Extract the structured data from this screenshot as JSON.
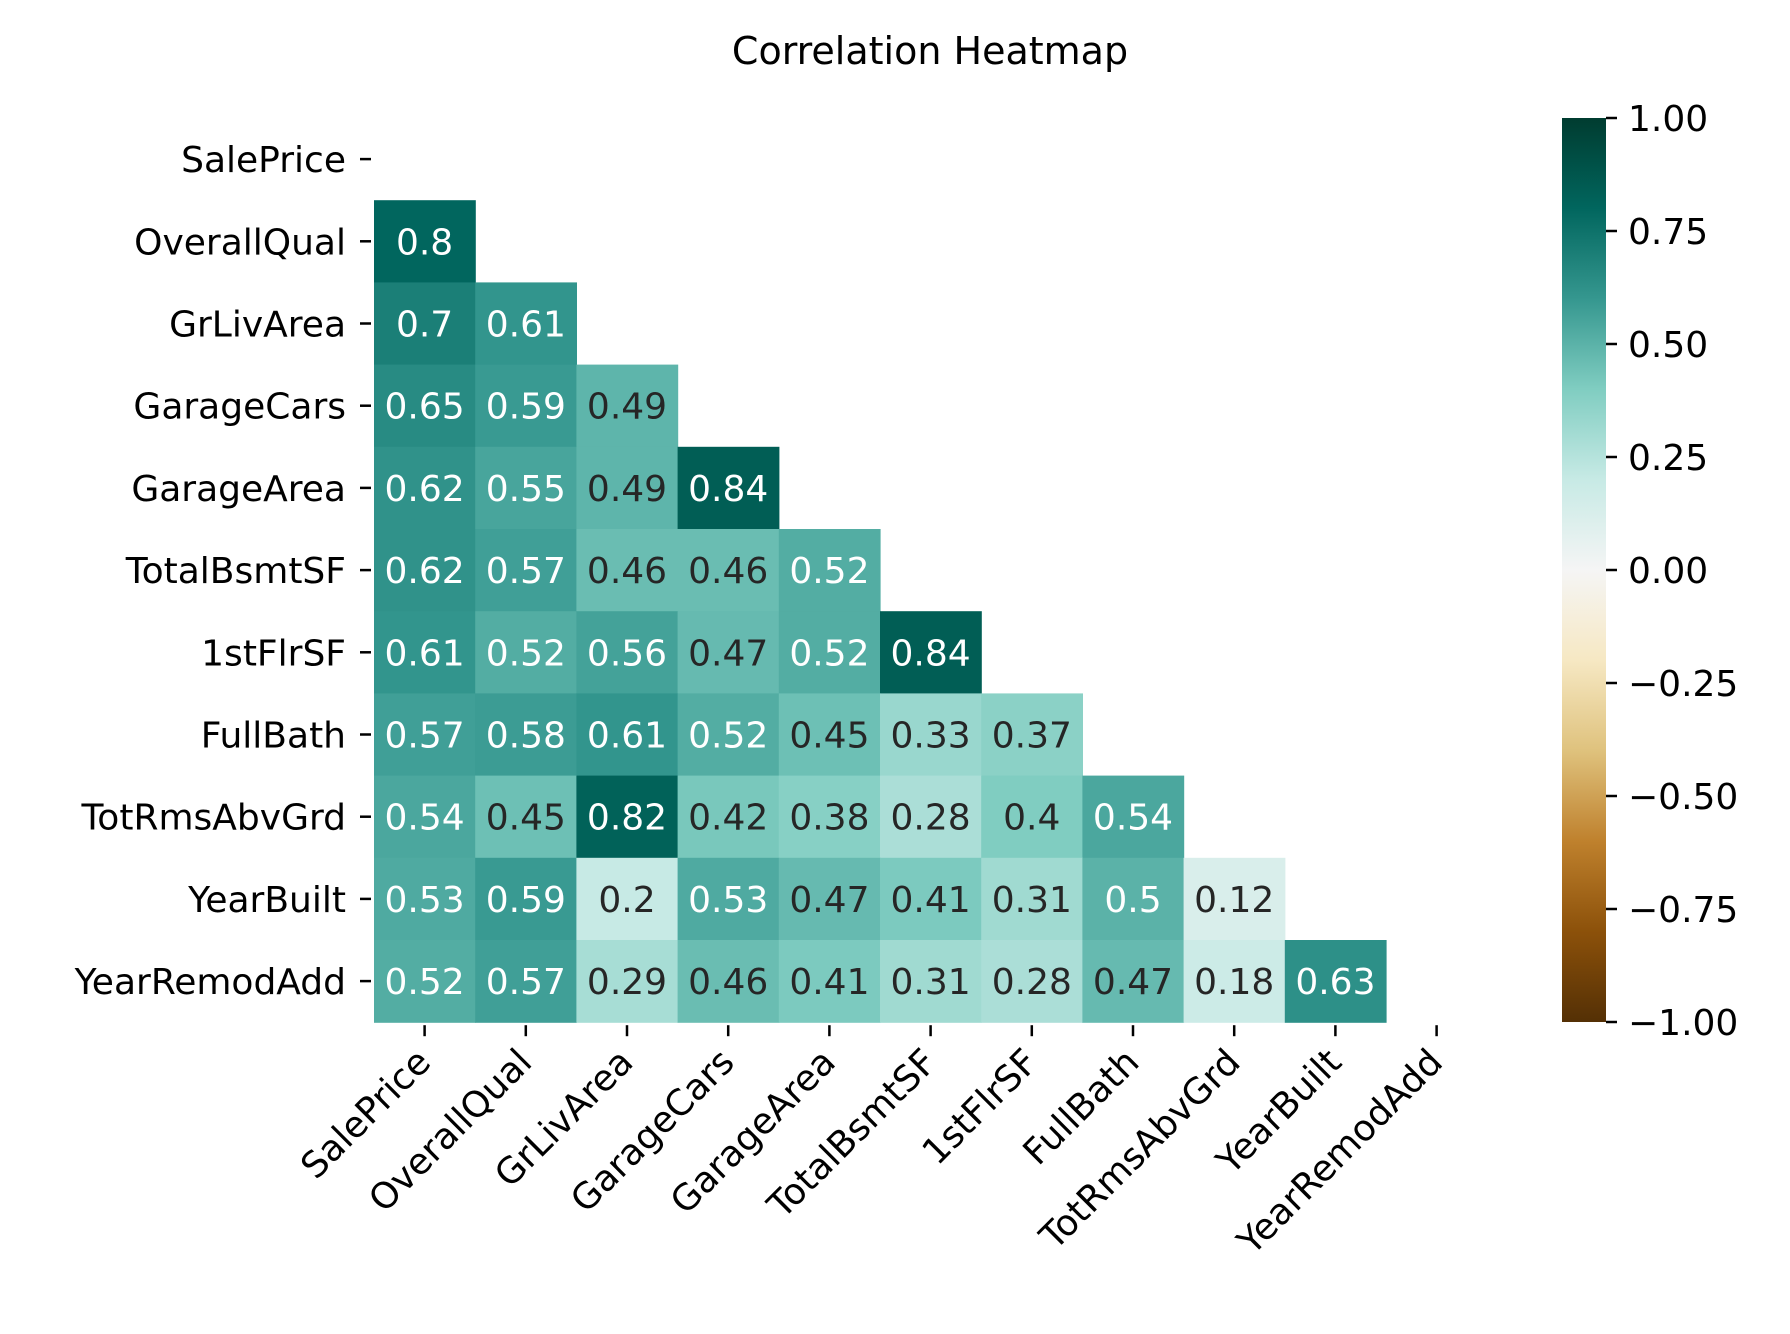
{
  "chart_data": {
    "type": "heatmap",
    "title": "Correlation Heatmap",
    "mask": "upper-triangle-including-diagonal",
    "colormap": "BrBG",
    "variables": [
      "SalePrice",
      "OverallQual",
      "GrLivArea",
      "GarageCars",
      "GarageArea",
      "TotalBsmtSF",
      "1stFlrSF",
      "FullBath",
      "TotRmsAbvGrd",
      "YearBuilt",
      "YearRemodAdd"
    ],
    "values": [
      [],
      [
        0.8
      ],
      [
        0.7,
        0.61
      ],
      [
        0.65,
        0.59,
        0.49
      ],
      [
        0.62,
        0.55,
        0.49,
        0.84
      ],
      [
        0.62,
        0.57,
        0.46,
        0.46,
        0.52
      ],
      [
        0.61,
        0.52,
        0.56,
        0.47,
        0.52,
        0.84
      ],
      [
        0.57,
        0.58,
        0.61,
        0.52,
        0.45,
        0.33,
        0.37
      ],
      [
        0.54,
        0.45,
        0.82,
        0.42,
        0.38,
        0.28,
        0.4,
        0.54
      ],
      [
        0.53,
        0.59,
        0.2,
        0.53,
        0.47,
        0.41,
        0.31,
        0.5,
        0.12
      ],
      [
        0.52,
        0.57,
        0.29,
        0.46,
        0.41,
        0.31,
        0.28,
        0.47,
        0.18,
        0.63
      ]
    ],
    "value_labels": [
      [],
      [
        "0.8"
      ],
      [
        "0.7",
        "0.61"
      ],
      [
        "0.65",
        "0.59",
        "0.49"
      ],
      [
        "0.62",
        "0.55",
        "0.49",
        "0.84"
      ],
      [
        "0.62",
        "0.57",
        "0.46",
        "0.46",
        "0.52"
      ],
      [
        "0.61",
        "0.52",
        "0.56",
        "0.47",
        "0.52",
        "0.84"
      ],
      [
        "0.57",
        "0.58",
        "0.61",
        "0.52",
        "0.45",
        "0.33",
        "0.37"
      ],
      [
        "0.54",
        "0.45",
        "0.82",
        "0.42",
        "0.38",
        "0.28",
        "0.4",
        "0.54"
      ],
      [
        "0.53",
        "0.59",
        "0.2",
        "0.53",
        "0.47",
        "0.41",
        "0.31",
        "0.5",
        "0.12"
      ],
      [
        "0.52",
        "0.57",
        "0.29",
        "0.46",
        "0.41",
        "0.31",
        "0.28",
        "0.47",
        "0.18",
        "0.63"
      ]
    ],
    "colorbar": {
      "range": [
        -1.0,
        1.0
      ],
      "ticks": [
        1.0,
        0.75,
        0.5,
        0.25,
        0.0,
        -0.25,
        -0.5,
        -0.75,
        -1.0
      ],
      "tick_labels": [
        "1.00",
        "0.75",
        "0.50",
        "0.25",
        "0.00",
        "−0.25",
        "−0.50",
        "−0.75",
        "−1.00"
      ],
      "stops": [
        "#543005",
        "#8c510a",
        "#bf812d",
        "#dfc27d",
        "#f6e8c3",
        "#f5f5f5",
        "#c7eae5",
        "#80cdc1",
        "#35978f",
        "#01665e",
        "#003c30"
      ]
    }
  }
}
